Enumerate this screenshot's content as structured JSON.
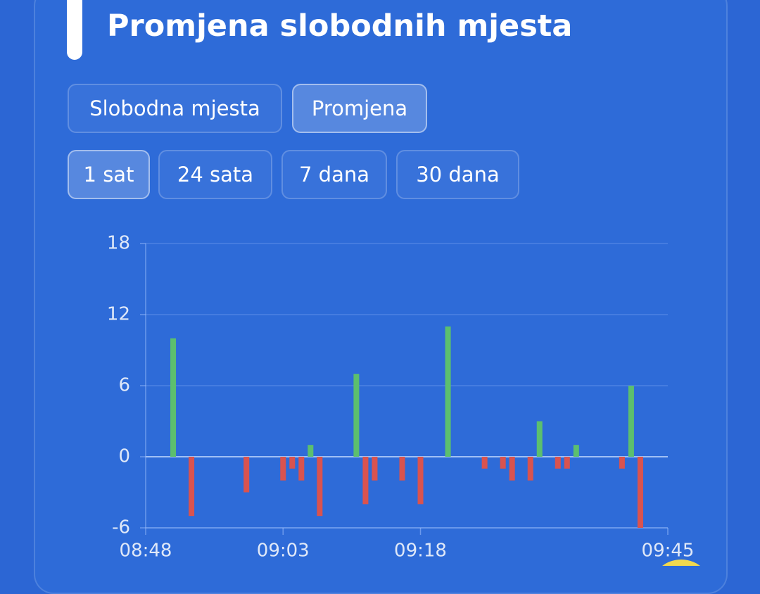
{
  "title": "Promjena slobodnih mjesta",
  "tabs": [
    "Slobodna mjesta",
    "Promjena"
  ],
  "ranges": [
    "1 sat",
    "24 sata",
    "7 dana",
    "30 dana"
  ],
  "chart_data": {
    "type": "bar",
    "x": [
      531,
      533,
      539,
      543,
      544,
      545,
      546,
      547,
      551,
      552,
      553,
      556,
      558,
      561,
      565,
      567,
      568,
      570,
      571,
      573,
      574,
      575,
      580,
      581,
      582
    ],
    "values": [
      10,
      -5,
      -3,
      -2,
      -1,
      -2,
      1,
      -5,
      7,
      -4,
      -2,
      -2,
      -4,
      11,
      -1,
      -1,
      -2,
      -2,
      3,
      -1,
      -1,
      1,
      -1,
      6,
      -6
    ],
    "positive_color": "#5cbf6e",
    "negative_color": "#d9534f",
    "xlim": [
      528,
      585
    ],
    "xticks": [
      {
        "value": 528,
        "label": "08:48"
      },
      {
        "value": 543,
        "label": "09:03"
      },
      {
        "value": 558,
        "label": "09:18"
      },
      {
        "value": 585,
        "label": "09:45"
      }
    ],
    "ylim": [
      -6,
      18
    ],
    "yticks": [
      -6,
      0,
      6,
      12,
      18
    ],
    "grid": true
  }
}
